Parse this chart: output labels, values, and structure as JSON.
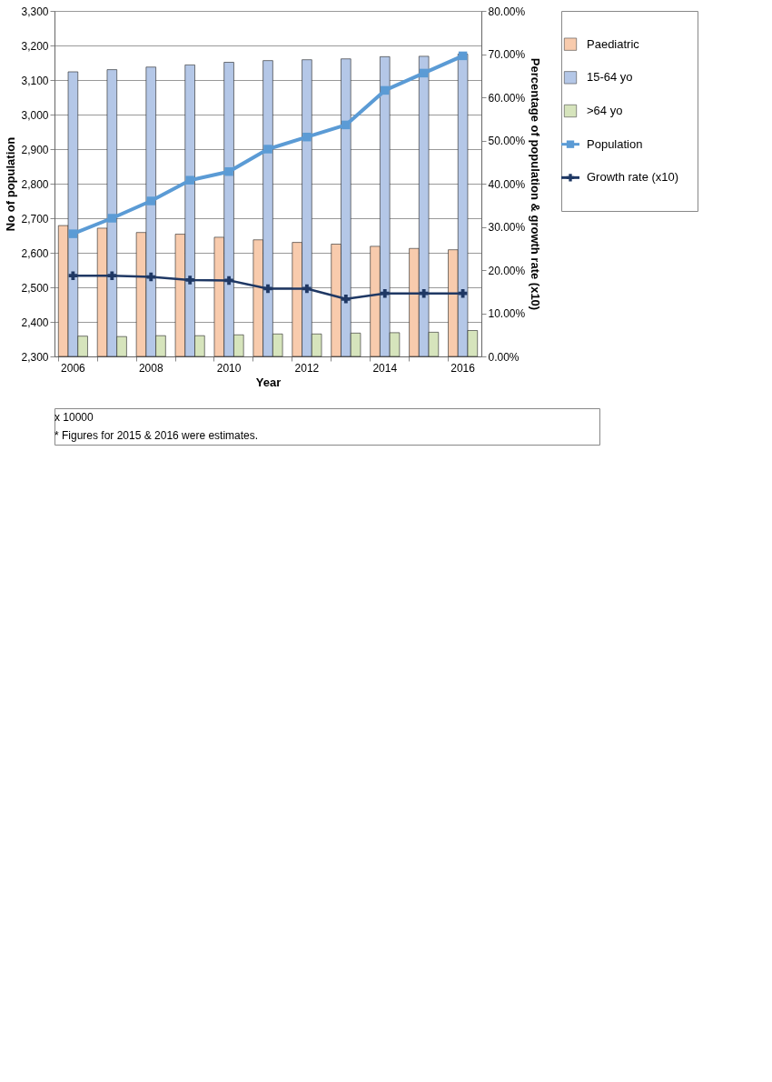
{
  "chart_data": {
    "type": "bar",
    "xlabel": "Year",
    "ylabel": "No of population",
    "y2label": "Percentage of population & growth rate (x10)",
    "categories": [
      "2006",
      null,
      "2008",
      null,
      "2010",
      null,
      "2012",
      null,
      "2014",
      null,
      "2016"
    ],
    "series": [
      {
        "name": "Paediatric",
        "axis": "y2",
        "color": "#f8cbad",
        "values": [
          30.3,
          29.7,
          28.7,
          28.3,
          27.6,
          27.0,
          26.4,
          26.0,
          25.5,
          25.0,
          24.7
        ]
      },
      {
        "name": "15-64 yo",
        "axis": "y2",
        "color": "#b4c7e7",
        "values": [
          65.9,
          66.4,
          67.0,
          67.5,
          68.1,
          68.5,
          68.7,
          68.9,
          69.4,
          69.5,
          70.0
        ]
      },
      {
        "name": ">64 yo",
        "axis": "y2",
        "color": "#d6e4bc",
        "values": [
          4.7,
          4.6,
          4.8,
          4.8,
          5.0,
          5.2,
          5.2,
          5.4,
          5.5,
          5.6,
          6.0
        ]
      },
      {
        "name": "Population",
        "type": "line",
        "color": "#5b9bd5",
        "marker": "square",
        "values": [
          2655,
          2700,
          2750,
          2810,
          2835,
          2900,
          2935,
          2970,
          3070,
          3120,
          3170
        ]
      },
      {
        "name": "Growth rate (x10)",
        "type": "line",
        "axis": "y2",
        "color": "#1f3864",
        "marker": "cross",
        "values": [
          18.7,
          18.7,
          18.4,
          17.7,
          17.6,
          15.7,
          15.7,
          13.3,
          14.6,
          14.6,
          14.6
        ]
      }
    ],
    "ylim": [
      2300,
      3300
    ],
    "yticks": [
      {
        "value": 2300,
        "label": "2,300"
      },
      {
        "value": 2400,
        "label": "2,400"
      },
      {
        "value": 2500,
        "label": "2,500"
      },
      {
        "value": 2600,
        "label": "2,600"
      },
      {
        "value": 2700,
        "label": "2,700"
      },
      {
        "value": 2800,
        "label": "2,800"
      },
      {
        "value": 2900,
        "label": "2,900"
      },
      {
        "value": 3000,
        "label": "3,000"
      },
      {
        "value": 3100,
        "label": "3,100"
      },
      {
        "value": 3200,
        "label": "3,200"
      },
      {
        "value": 3300,
        "label": "3,300"
      }
    ],
    "y2lim": [
      0,
      80
    ],
    "y2ticks": [
      {
        "value": 0,
        "label": "0.00%"
      },
      {
        "value": 10,
        "label": "10.00%"
      },
      {
        "value": 20,
        "label": "20.00%"
      },
      {
        "value": 30,
        "label": "30.00%"
      },
      {
        "value": 40,
        "label": "40.00%"
      },
      {
        "value": 50,
        "label": "50.00%"
      },
      {
        "value": 60,
        "label": "60.00%"
      },
      {
        "value": 70,
        "label": "70.00%"
      },
      {
        "value": 80,
        "label": "80.00%"
      }
    ],
    "grid": "y",
    "legend": "right",
    "annotations": [
      "x 10000",
      "* Figures for 2015 & 2016 were estimates."
    ]
  }
}
